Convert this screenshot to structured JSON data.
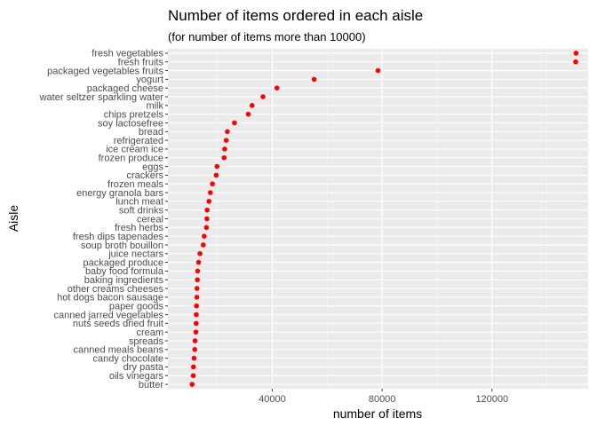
{
  "chart_data": {
    "type": "scatter",
    "title": "Number of items ordered in each aisle",
    "subtitle": "(for number of items more than 10000)",
    "xlabel": "number of items",
    "ylabel": "Aisle",
    "xlim": [
      2000,
      155000
    ],
    "xticks": [
      40000,
      80000,
      120000
    ],
    "xtick_labels": [
      "40000",
      "80000",
      "120000"
    ],
    "grid": true,
    "point_color": "#ff0000",
    "panel_color": "#ebebeb",
    "categories": [
      "fresh vegetables",
      "fresh fruits",
      "packaged vegetables fruits",
      "yogurt",
      "packaged cheese",
      "water seltzer sparkling water",
      "milk",
      "chips pretzels",
      "soy lactosefree",
      "bread",
      "refrigerated",
      "ice cream ice",
      "frozen produce",
      "eggs",
      "crackers",
      "frozen meals",
      "energy granola bars",
      "lunch meat",
      "soft drinks",
      "cereal",
      "fresh herbs",
      "fresh dips tapenades",
      "soup broth bouillon",
      "juice nectars",
      "packaged produce",
      "baby food formula",
      "baking ingredients",
      "other creams cheeses",
      "hot dogs bacon sausage",
      "paper goods",
      "canned jarred vegetables",
      "nuts seeds dried fruit",
      "cream",
      "spreads",
      "canned meals beans",
      "candy chocolate",
      "dry pasta",
      "oils vinegars",
      "butter"
    ],
    "values": [
      150609,
      150473,
      78493,
      55240,
      41699,
      36617,
      32644,
      31269,
      26240,
      23635,
      23228,
      22676,
      22453,
      19875,
      19592,
      18221,
      17449,
      16957,
      16279,
      16201,
      16011,
      15216,
      14871,
      13662,
      13167,
      12824,
      12727,
      12595,
      12537,
      12408,
      12339,
      12283,
      12193,
      11877,
      11776,
      11514,
      11300,
      11240,
      10812
    ]
  }
}
